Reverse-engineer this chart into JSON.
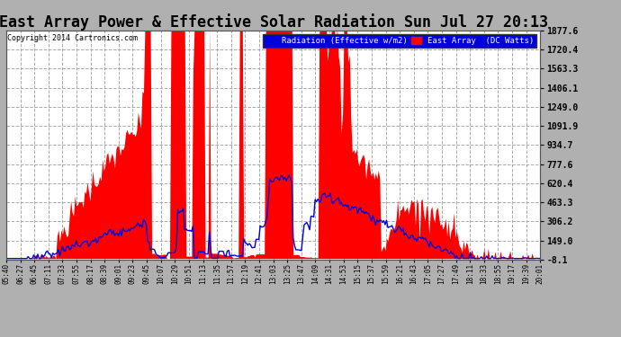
{
  "title": "East Array Power & Effective Solar Radiation Sun Jul 27 20:13",
  "copyright": "Copyright 2014 Cartronics.com",
  "legend_radiation": "Radiation (Effective w/m2)",
  "legend_array": "East Array  (DC Watts)",
  "ylabel_right_ticks": [
    1877.6,
    1720.4,
    1563.3,
    1406.1,
    1249.0,
    1091.9,
    934.7,
    777.6,
    620.4,
    463.3,
    306.2,
    149.0,
    -8.1
  ],
  "ymin": -8.1,
  "ymax": 1877.6,
  "outer_background": "#b0b0b0",
  "plot_background": "#ffffff",
  "grid_color": "#aaaaaa",
  "title_color": "black",
  "radiation_color": "#0000dd",
  "array_color": "#ff0000",
  "title_fontsize": 12,
  "x_labels": [
    "05:40",
    "06:27",
    "06:45",
    "07:11",
    "07:33",
    "07:55",
    "08:17",
    "08:39",
    "09:01",
    "09:23",
    "09:45",
    "10:07",
    "10:29",
    "10:51",
    "11:13",
    "11:35",
    "11:57",
    "12:19",
    "12:41",
    "13:03",
    "13:25",
    "13:47",
    "14:09",
    "14:31",
    "14:53",
    "15:15",
    "15:37",
    "15:59",
    "16:21",
    "16:43",
    "17:05",
    "17:27",
    "17:49",
    "18:11",
    "18:33",
    "18:55",
    "19:17",
    "19:39",
    "20:01"
  ]
}
